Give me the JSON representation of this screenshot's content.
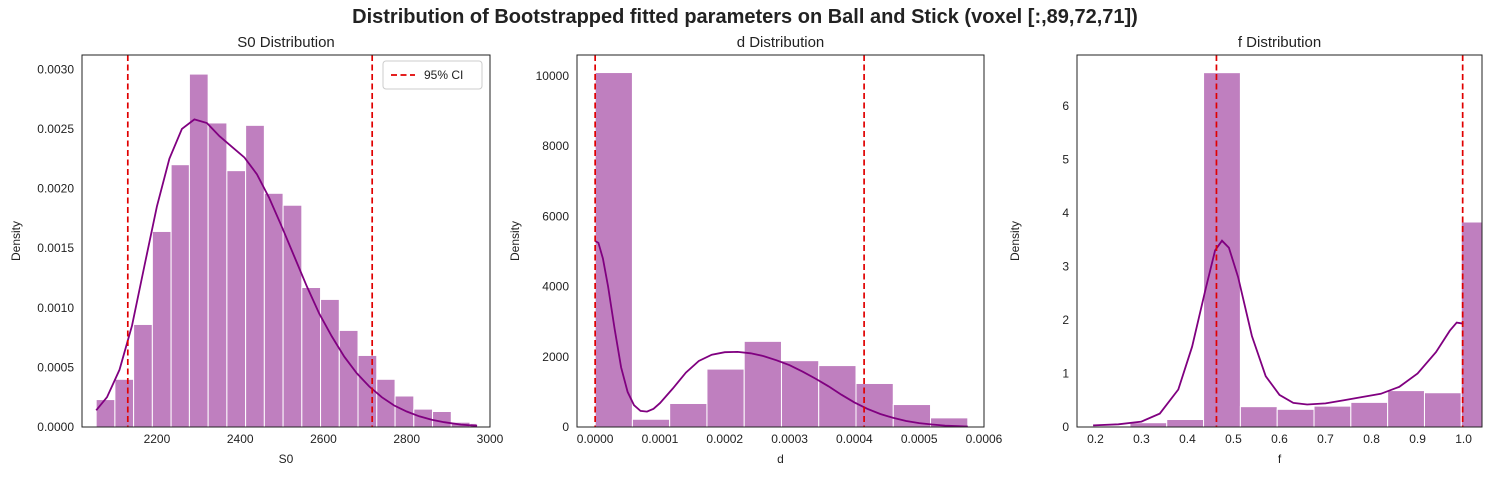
{
  "figure": {
    "suptitle": "Distribution of Bootstrapped fitted parameters on Ball and Stick (voxel [:,89,72,71])",
    "colors": {
      "bar": "#bf7fbf",
      "kde": "#800080",
      "ci": "#e00000",
      "axes": "#222222"
    }
  },
  "chart_data": [
    {
      "type": "histogram",
      "title": "S0 Distribution",
      "xlabel": "S0",
      "ylabel": "Density",
      "xlim": [
        2020,
        3000
      ],
      "ylim": [
        0,
        0.00312
      ],
      "xticks": [
        2200,
        2400,
        2600,
        2800,
        3000
      ],
      "yticks": [
        0,
        0.0005,
        0.001,
        0.0015,
        0.002,
        0.0025,
        0.003
      ],
      "ytick_labels": [
        "0.0000",
        "0.0005",
        "0.0010",
        "0.0015",
        "0.0020",
        "0.0025",
        "0.0030"
      ],
      "bins": [
        [
          2054,
          2099,
          0.00023
        ],
        [
          2099,
          2144,
          0.0004
        ],
        [
          2144,
          2189,
          0.00086
        ],
        [
          2189,
          2234,
          0.00164
        ],
        [
          2234,
          2278,
          0.0022
        ],
        [
          2278,
          2323,
          0.00296
        ],
        [
          2323,
          2368,
          0.00255
        ],
        [
          2368,
          2413,
          0.00215
        ],
        [
          2413,
          2458,
          0.00253
        ],
        [
          2458,
          2503,
          0.00196
        ],
        [
          2503,
          2548,
          0.00186
        ],
        [
          2548,
          2593,
          0.00117
        ],
        [
          2593,
          2638,
          0.00107
        ],
        [
          2638,
          2683,
          0.00081
        ],
        [
          2683,
          2728,
          0.0006
        ],
        [
          2728,
          2772,
          0.0004
        ],
        [
          2772,
          2817,
          0.00026
        ],
        [
          2817,
          2862,
          0.00015
        ],
        [
          2862,
          2907,
          0.00013
        ],
        [
          2907,
          2952,
          4e-05
        ],
        [
          2952,
          2969,
          3e-05
        ]
      ],
      "kde": [
        [
          2054,
          0.00014
        ],
        [
          2080,
          0.00025
        ],
        [
          2110,
          0.00048
        ],
        [
          2140,
          0.00085
        ],
        [
          2170,
          0.00135
        ],
        [
          2200,
          0.00185
        ],
        [
          2230,
          0.00225
        ],
        [
          2260,
          0.0025
        ],
        [
          2290,
          0.00258
        ],
        [
          2320,
          0.00255
        ],
        [
          2350,
          0.00244
        ],
        [
          2380,
          0.00235
        ],
        [
          2410,
          0.00226
        ],
        [
          2440,
          0.00212
        ],
        [
          2470,
          0.00192
        ],
        [
          2500,
          0.00168
        ],
        [
          2530,
          0.00143
        ],
        [
          2560,
          0.00118
        ],
        [
          2590,
          0.00095
        ],
        [
          2620,
          0.00076
        ],
        [
          2650,
          0.00059
        ],
        [
          2680,
          0.00045
        ],
        [
          2710,
          0.00034
        ],
        [
          2740,
          0.00025
        ],
        [
          2770,
          0.00018
        ],
        [
          2800,
          0.00013
        ],
        [
          2830,
          9e-05
        ],
        [
          2860,
          6e-05
        ],
        [
          2890,
          4e-05
        ],
        [
          2930,
          2e-05
        ],
        [
          2969,
          1e-05
        ]
      ],
      "ci_lines": [
        2130,
        2717
      ],
      "legend": {
        "label": "95% CI",
        "position": "top-right"
      }
    },
    {
      "type": "histogram",
      "title": "d Distribution",
      "xlabel": "d",
      "ylabel": "Density",
      "xlim": [
        -2.8e-05,
        0.0006
      ],
      "ylim": [
        0,
        10600
      ],
      "xticks": [
        0,
        0.0001,
        0.0002,
        0.0003,
        0.0004,
        0.0005,
        0.0006
      ],
      "xtick_labels": [
        "0.0000",
        "0.0001",
        "0.0002",
        "0.0003",
        "0.0004",
        "0.0005",
        "0.0006"
      ],
      "yticks": [
        0,
        2000,
        4000,
        6000,
        8000,
        10000
      ],
      "bins": [
        [
          0.0,
          5.75e-05,
          10100
        ],
        [
          5.75e-05,
          0.000115,
          220
        ],
        [
          0.000115,
          0.0001725,
          670
        ],
        [
          0.0001725,
          0.00023,
          1650
        ],
        [
          0.00023,
          0.0002875,
          2440
        ],
        [
          0.0002875,
          0.000345,
          1890
        ],
        [
          0.000345,
          0.0004025,
          1750
        ],
        [
          0.0004025,
          0.00046,
          1240
        ],
        [
          0.00046,
          0.0005175,
          640
        ],
        [
          0.0005175,
          0.000575,
          260
        ]
      ],
      "kde": [
        [
          0.0,
          5300
        ],
        [
          5e-06,
          5250
        ],
        [
          1.2e-05,
          4800
        ],
        [
          2e-05,
          4000
        ],
        [
          3e-05,
          2800
        ],
        [
          4e-05,
          1700
        ],
        [
          5e-05,
          1000
        ],
        [
          6e-05,
          620
        ],
        [
          7e-05,
          460
        ],
        [
          8e-05,
          440
        ],
        [
          9e-05,
          520
        ],
        [
          0.0001,
          680
        ],
        [
          0.00012,
          1100
        ],
        [
          0.00014,
          1550
        ],
        [
          0.00016,
          1880
        ],
        [
          0.00018,
          2060
        ],
        [
          0.0002,
          2130
        ],
        [
          0.00022,
          2140
        ],
        [
          0.00024,
          2100
        ],
        [
          0.00026,
          2020
        ],
        [
          0.00028,
          1900
        ],
        [
          0.0003,
          1760
        ],
        [
          0.00032,
          1580
        ],
        [
          0.00034,
          1380
        ],
        [
          0.00036,
          1160
        ],
        [
          0.00038,
          920
        ],
        [
          0.0004,
          700
        ],
        [
          0.00042,
          520
        ],
        [
          0.00044,
          370
        ],
        [
          0.00046,
          260
        ],
        [
          0.00048,
          170
        ],
        [
          0.0005,
          110
        ],
        [
          0.00052,
          70
        ],
        [
          0.00054,
          40
        ],
        [
          0.00056,
          25
        ],
        [
          0.000575,
          15
        ]
      ],
      "ci_lines": [
        0.0,
        0.000415
      ]
    },
    {
      "type": "histogram",
      "title": "f Distribution",
      "xlabel": "f",
      "ylabel": "Density",
      "xlim": [
        0.16,
        1.04
      ],
      "ylim": [
        0,
        6.95
      ],
      "xticks": [
        0.2,
        0.3,
        0.4,
        0.5,
        0.6,
        0.7,
        0.8,
        0.9,
        1.0
      ],
      "xtick_labels": [
        "0.2",
        "0.3",
        "0.4",
        "0.5",
        "0.6",
        "0.7",
        "0.8",
        "0.9",
        "1.0"
      ],
      "yticks": [
        0,
        1,
        2,
        3,
        4,
        5,
        6
      ],
      "bins": [
        [
          0.195,
          0.275,
          0.02
        ],
        [
          0.275,
          0.355,
          0.08
        ],
        [
          0.355,
          0.435,
          0.14
        ],
        [
          0.435,
          0.515,
          6.62
        ],
        [
          0.515,
          0.595,
          0.38
        ],
        [
          0.595,
          0.675,
          0.33
        ],
        [
          0.675,
          0.755,
          0.39
        ],
        [
          0.755,
          0.835,
          0.46
        ],
        [
          0.835,
          0.915,
          0.68
        ],
        [
          0.915,
          0.995,
          0.64
        ],
        [
          0.995,
          1.075,
          3.83
        ]
      ],
      "kde": [
        [
          0.195,
          0.03
        ],
        [
          0.25,
          0.05
        ],
        [
          0.3,
          0.1
        ],
        [
          0.34,
          0.25
        ],
        [
          0.38,
          0.7
        ],
        [
          0.41,
          1.5
        ],
        [
          0.44,
          2.6
        ],
        [
          0.46,
          3.3
        ],
        [
          0.475,
          3.48
        ],
        [
          0.49,
          3.35
        ],
        [
          0.51,
          2.8
        ],
        [
          0.54,
          1.7
        ],
        [
          0.57,
          0.95
        ],
        [
          0.6,
          0.6
        ],
        [
          0.63,
          0.45
        ],
        [
          0.66,
          0.42
        ],
        [
          0.7,
          0.44
        ],
        [
          0.74,
          0.5
        ],
        [
          0.78,
          0.56
        ],
        [
          0.82,
          0.62
        ],
        [
          0.86,
          0.75
        ],
        [
          0.9,
          1.0
        ],
        [
          0.94,
          1.4
        ],
        [
          0.97,
          1.8
        ],
        [
          0.985,
          1.95
        ],
        [
          1.0,
          1.93
        ]
      ],
      "ci_lines": [
        0.463,
        0.998
      ]
    }
  ]
}
